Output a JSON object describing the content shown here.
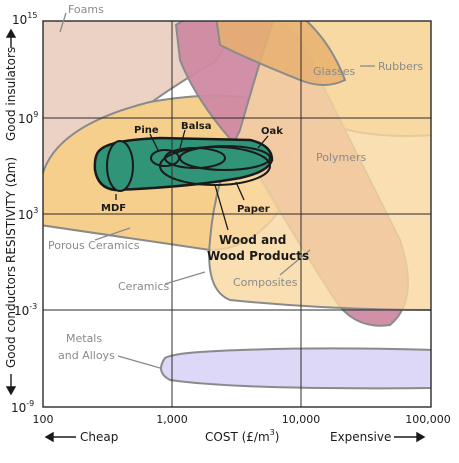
{
  "chart_data": {
    "type": "area",
    "title": "",
    "xlabel": "COST (£/m",
    "xlabel_sup": "3",
    "xlabel_close": ")",
    "ylabel": "RESISTIVITY (Ωm)",
    "x_scale": "log",
    "y_scale": "log",
    "xlim": [
      100,
      100000
    ],
    "ylim_exponent": [
      -9,
      15
    ],
    "x_ticks": [
      {
        "value": 100,
        "label": "100"
      },
      {
        "value": 1000,
        "label": "1,000"
      },
      {
        "value": 10000,
        "label": "10,000"
      },
      {
        "value": 100000,
        "label": "100,000"
      }
    ],
    "y_ticks": [
      {
        "exp": 15,
        "base": "10",
        "sup": "15"
      },
      {
        "exp": 9,
        "base": "10",
        "sup": "9"
      },
      {
        "exp": 3,
        "base": "10",
        "sup": "3"
      },
      {
        "exp": -3,
        "base": "10",
        "sup": "-3"
      },
      {
        "exp": -9,
        "base": "10",
        "sup": "-9"
      }
    ],
    "grid": true,
    "x_annotations": {
      "left": "Cheap",
      "right": "Expensive"
    },
    "y_annotations": {
      "top": "Good insulators",
      "bottom": "Good conductors"
    },
    "regions": [
      {
        "name": "Foams",
        "cost_range": [
          100,
          900
        ],
        "resistivity_exp_range": [
          9,
          15
        ]
      },
      {
        "name": "Glasses",
        "cost_range": [
          1300,
          11000
        ],
        "resistivity_exp_range": [
          10,
          15
        ]
      },
      {
        "name": "Rubbers",
        "cost_range": [
          1500,
          100000
        ],
        "resistivity_exp_range": [
          7,
          15
        ]
      },
      {
        "name": "Polymers",
        "cost_range": [
          1600,
          60000
        ],
        "resistivity_exp_range": [
          -4,
          15
        ]
      },
      {
        "name": "Porous Ceramics",
        "cost_range": [
          100,
          5000
        ],
        "resistivity_exp_range": [
          3,
          9
        ]
      },
      {
        "name": "Ceramics",
        "cost_range": [
          200,
          8000
        ],
        "resistivity_exp_range": [
          2,
          9
        ]
      },
      {
        "name": "Composites",
        "cost_range": [
          2000,
          100000
        ],
        "resistivity_exp_range": [
          -4,
          15
        ]
      },
      {
        "name": "Wood and Wood Products",
        "cost_range": [
          250,
          6000
        ],
        "resistivity_exp_range": [
          4,
          8
        ]
      },
      {
        "name": "Metals and Alloys",
        "cost_range": [
          700,
          100000
        ],
        "resistivity_exp_range": [
          -8.5,
          -6.3
        ]
      }
    ],
    "wood_labels": [
      "Pine",
      "Balsa",
      "Oak",
      "MDF",
      "Paper"
    ]
  },
  "colors": {
    "foams": "#ecd2c4",
    "rubbers": "#f8dba0",
    "polymers": "#cf8aa3",
    "glasses": "#e8b070",
    "ceramics": "#f6cf8c",
    "composites": "#f9d8a2",
    "wood": "#2f9478",
    "metals": "#ddd8f7",
    "text_grey": "#8a8a8a"
  }
}
